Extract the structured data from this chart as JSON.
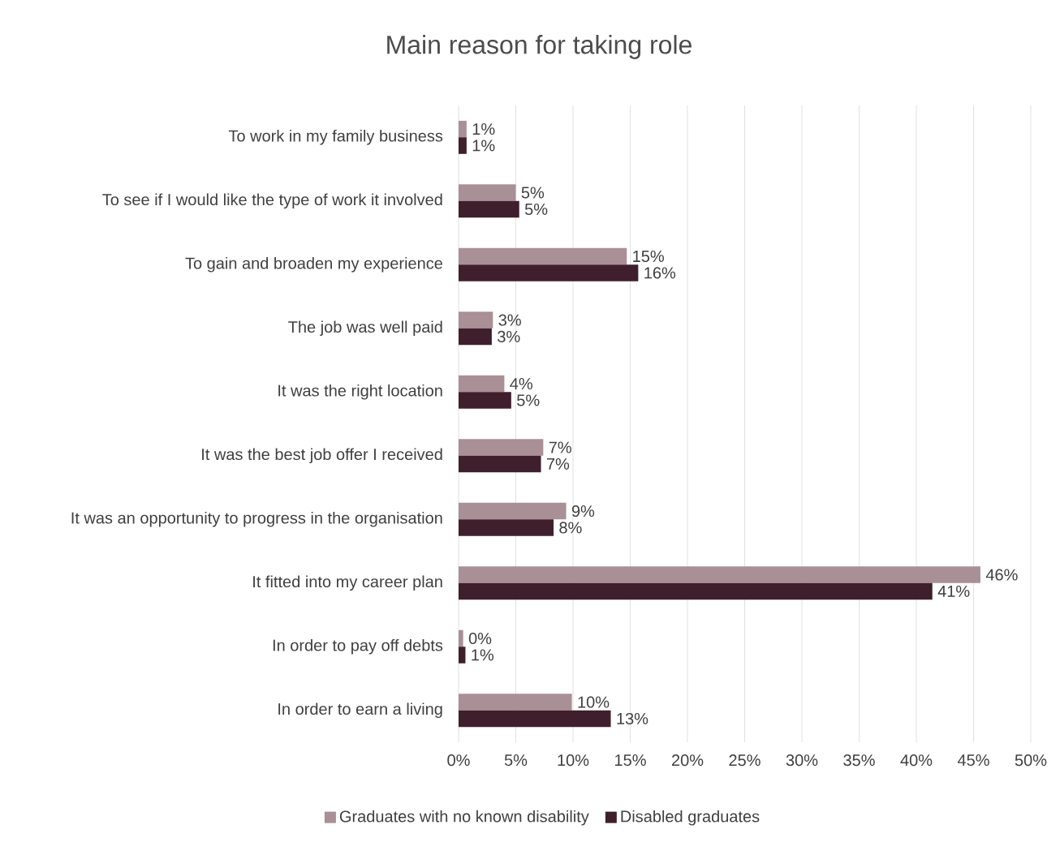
{
  "chart_data": {
    "type": "bar",
    "orientation": "horizontal",
    "title": "Main reason for taking role",
    "categories": [
      "To work in my family business",
      "To see if I would like the type of work it involved",
      "To gain and broaden my experience",
      "The job was well paid",
      "It was the right location",
      "It was the best job offer I received",
      "It was an opportunity to progress in the organisation",
      "It fitted into my career plan",
      "In order to pay off debts",
      "In order to earn a living"
    ],
    "series": [
      {
        "name": "Graduates with no known disability",
        "color": "#a98f96",
        "values": [
          0.7,
          5.0,
          14.7,
          3.0,
          4.0,
          7.4,
          9.4,
          45.6,
          0.4,
          9.9
        ],
        "value_labels": [
          "1%",
          "5%",
          "15%",
          "3%",
          "4%",
          "7%",
          "9%",
          "46%",
          "0%",
          "10%"
        ]
      },
      {
        "name": "Disabled graduates",
        "color": "#3f1f2b",
        "values": [
          0.7,
          5.3,
          15.7,
          2.9,
          4.6,
          7.2,
          8.3,
          41.4,
          0.6,
          13.3
        ],
        "value_labels": [
          "1%",
          "5%",
          "16%",
          "3%",
          "5%",
          "7%",
          "8%",
          "41%",
          "1%",
          "13%"
        ]
      }
    ],
    "xlim": [
      0,
      50
    ],
    "xticks": [
      {
        "value": 0,
        "label": "0%"
      },
      {
        "value": 5,
        "label": "5%"
      },
      {
        "value": 10,
        "label": "10%"
      },
      {
        "value": 15,
        "label": "15%"
      },
      {
        "value": 20,
        "label": "20%"
      },
      {
        "value": 25,
        "label": "25%"
      },
      {
        "value": 30,
        "label": "30%"
      },
      {
        "value": 35,
        "label": "35%"
      },
      {
        "value": 40,
        "label": "40%"
      },
      {
        "value": 45,
        "label": "45%"
      },
      {
        "value": 50,
        "label": "50%"
      }
    ],
    "grid": "x",
    "legend": "bottom"
  }
}
